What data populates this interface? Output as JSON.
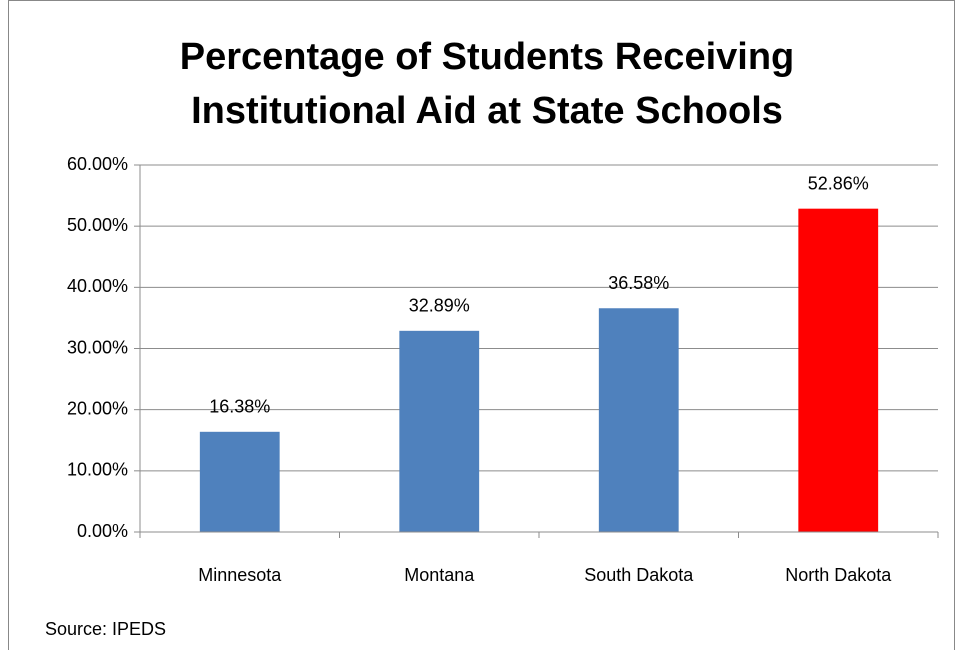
{
  "chart_data": {
    "type": "bar",
    "title": "Percentage of Students Receiving Institutional Aid at State Schools",
    "categories": [
      "Minnesota",
      "Montana",
      "South Dakota",
      "North Dakota"
    ],
    "values": [
      16.38,
      32.89,
      36.58,
      52.86
    ],
    "value_labels": [
      "16.38%",
      "32.89%",
      "36.58%",
      "52.86%"
    ],
    "colors": [
      "#4f81bd",
      "#4f81bd",
      "#4f81bd",
      "#ff0000"
    ],
    "ylim": [
      0,
      60
    ],
    "yticks": [
      {
        "value": 0,
        "label": "0.00%"
      },
      {
        "value": 10,
        "label": "10.00%"
      },
      {
        "value": 20,
        "label": "20.00%"
      },
      {
        "value": 30,
        "label": "30.00%"
      },
      {
        "value": 40,
        "label": "40.00%"
      },
      {
        "value": 50,
        "label": "50.00%"
      },
      {
        "value": 60,
        "label": "60.00%"
      }
    ],
    "grid": true,
    "source": "Source: IPEDS"
  }
}
